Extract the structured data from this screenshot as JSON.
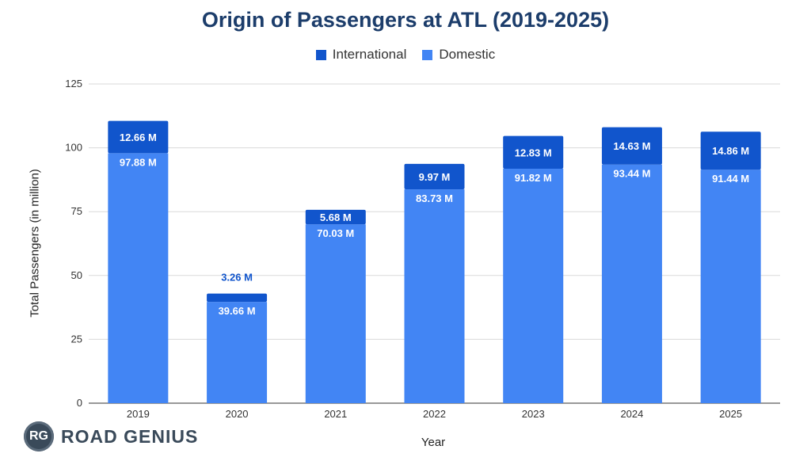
{
  "chart_data": {
    "type": "bar",
    "stacked": true,
    "title": "Origin of Passengers at ATL (2019-2025)",
    "xlabel": "Year",
    "ylabel": "Total Passengers (in million)",
    "ylim": [
      0,
      125
    ],
    "yticks": [
      0,
      25,
      50,
      75,
      100,
      125
    ],
    "grid": true,
    "legend_position": "top-center",
    "categories": [
      "2019",
      "2020",
      "2021",
      "2022",
      "2023",
      "2024",
      "2025"
    ],
    "series": [
      {
        "name": "Domestic",
        "color": "#4285f4",
        "values": [
          97.88,
          39.66,
          70.03,
          83.73,
          91.82,
          93.44,
          91.44
        ],
        "labels": [
          "97.88 M",
          "39.66 M",
          "70.03 M",
          "83.73 M",
          "91.82 M",
          "93.44 M",
          "91.44 M"
        ]
      },
      {
        "name": "International",
        "color": "#1155cc",
        "values": [
          12.66,
          3.26,
          5.68,
          9.97,
          12.83,
          14.63,
          14.86
        ],
        "labels": [
          "12.66 M",
          "3.26 M",
          "5.68 M",
          "9.97 M",
          "12.83 M",
          "14.63 M",
          "14.86 M"
        ]
      }
    ],
    "legend_order": [
      "International",
      "Domestic"
    ]
  },
  "brand": {
    "logo_text": "RG",
    "name": "ROAD GENIUS"
  }
}
